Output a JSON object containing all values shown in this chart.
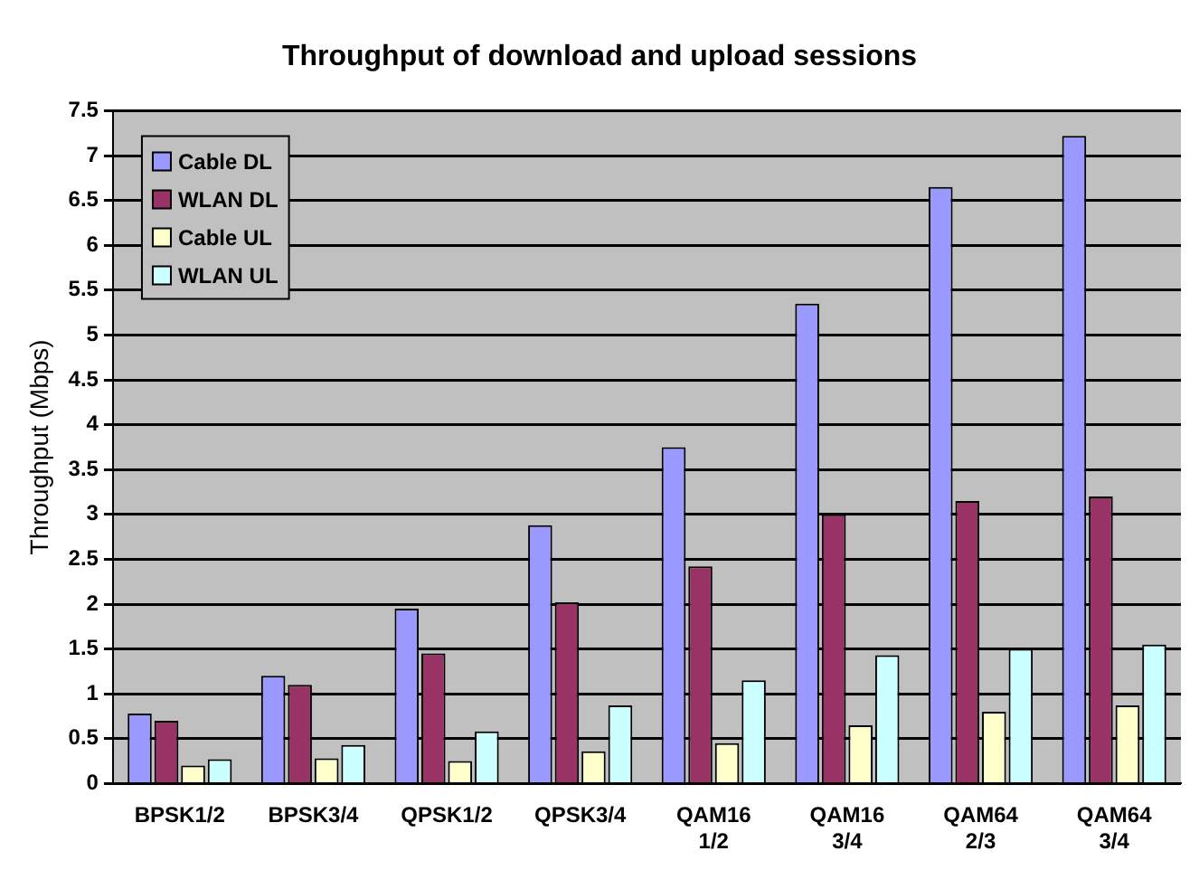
{
  "chart_data": {
    "type": "bar",
    "title": "Throughput of download and upload sessions",
    "ylabel": "Throughput (Mbps)",
    "categories": [
      "BPSK1/2",
      "BPSK3/4",
      "QPSK1/2",
      "QPSK3/4",
      "QAM16 1/2",
      "QAM16 3/4",
      "QAM64 2/3",
      "QAM64 3/4"
    ],
    "series": [
      {
        "name": "Cable DL",
        "color": "#9999ff",
        "values": [
          0.78,
          1.2,
          1.95,
          2.88,
          3.75,
          5.35,
          6.65,
          7.22
        ]
      },
      {
        "name": "WLAN DL",
        "color": "#993366",
        "values": [
          0.7,
          1.1,
          1.45,
          2.02,
          2.42,
          3.0,
          3.15,
          3.2
        ]
      },
      {
        "name": "Cable UL",
        "color": "#ffffcc",
        "values": [
          0.2,
          0.28,
          0.25,
          0.36,
          0.45,
          0.65,
          0.8,
          0.87
        ]
      },
      {
        "name": "WLAN UL",
        "color": "#ccffff",
        "values": [
          0.27,
          0.43,
          0.58,
          0.87,
          1.15,
          1.43,
          1.5,
          1.55
        ]
      }
    ],
    "ylim": [
      0,
      7.5
    ],
    "yticks": [
      0,
      0.5,
      1,
      1.5,
      2,
      2.5,
      3,
      3.5,
      4,
      4.5,
      5,
      5.5,
      6,
      6.5,
      7,
      7.5
    ],
    "grid": "y",
    "legend": "top left"
  }
}
